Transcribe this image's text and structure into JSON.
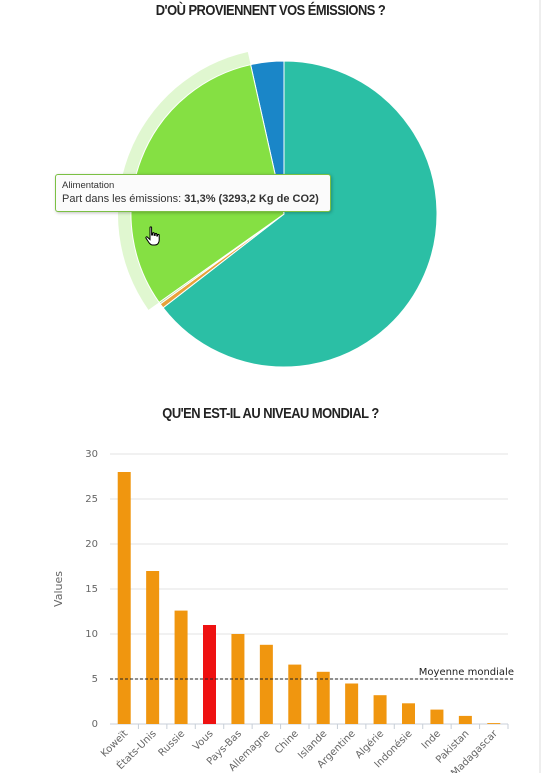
{
  "headings": {
    "top": "D'OÙ PROVIENNENT VOS ÉMISSIONS ?",
    "middle": "QU'EN EST-IL AU NIVEAU MONDIAL ?"
  },
  "tooltip": {
    "category": "Alimentation",
    "label": "Part dans les émissions:",
    "value": "31,3% (3293,2 Kg de CO2)"
  },
  "cursor_icon": "hand-pointer-icon",
  "chart_data": [
    {
      "type": "pie",
      "title": "D'OÙ PROVIENNENT VOS ÉMISSIONS ?",
      "highlighted_slice": "Alimentation",
      "slices": [
        {
          "label": "",
          "percent": 3.5,
          "color": "#1a86c8"
        },
        {
          "label": "",
          "percent": 64.5,
          "color": "#2bbfa5"
        },
        {
          "label": "",
          "percent": 0.5,
          "color": "#e8a23a"
        },
        {
          "label": "",
          "percent": 0.2,
          "color": "#b5d99c"
        },
        {
          "label": "Alimentation",
          "percent": 31.3,
          "color": "#85e043"
        }
      ]
    },
    {
      "type": "bar",
      "title": "QU'EN EST-IL AU NIVEAU MONDIAL ?",
      "ylabel": "Values",
      "ylim": [
        0,
        30
      ],
      "yticks": [
        0,
        5,
        10,
        15,
        20,
        25,
        30
      ],
      "grid": true,
      "categories": [
        "Koweït",
        "États-Unis",
        "Russie",
        "Vous",
        "Pays-Bas",
        "Allemagne",
        "Chine",
        "Islande",
        "Argentine",
        "Algérie",
        "Indonésie",
        "Inde",
        "Pakistan",
        "Madagascar"
      ],
      "values": [
        28,
        17,
        12.6,
        11,
        10,
        8.8,
        6.6,
        5.8,
        4.5,
        3.2,
        2.3,
        1.6,
        0.9,
        0.1
      ],
      "highlight": "Vous",
      "colors": {
        "bar": "#f0960f",
        "highlight": "#ee1111"
      },
      "reference_line": {
        "label": "Moyenne mondiale",
        "value": 5
      }
    }
  ]
}
